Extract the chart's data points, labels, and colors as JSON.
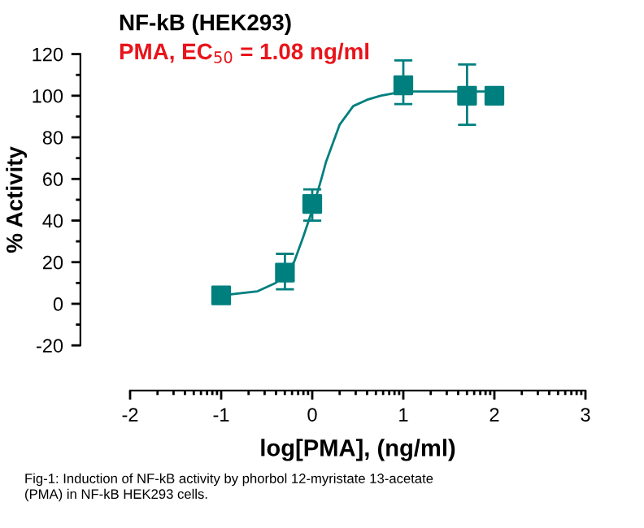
{
  "chart_data": {
    "type": "scatter",
    "title": "NF-kB (HEK293)",
    "subtitle": "PMA, EC$_{50}$ = 1.08 ng/ml",
    "xlabel": "log[PMA], (ng/ml)",
    "ylabel": "% Activity",
    "annotations": [
      "Fig-1: Induction of NF-kB activity by phorbol 12-myristate 13-acetate\n(PMA) in NF-kB HEK293 cells."
    ],
    "xlim": [
      -2,
      3
    ],
    "xticks": [
      -2,
      -1,
      0,
      1,
      2,
      3
    ],
    "ylim": [
      -20,
      120
    ],
    "yticks": [
      -20,
      0,
      20,
      40,
      60,
      80,
      100,
      120
    ],
    "grid": false,
    "legend": false,
    "marker": "square",
    "series": [
      {
        "type": "line",
        "color": "#007f7f",
        "marker": "none",
        "x": [
          -1,
          -0.6,
          -0.4,
          -0.2,
          -0.1,
          0,
          0.1,
          0.15,
          0.3,
          0.45,
          0.6,
          0.75,
          1.0,
          2.0
        ],
        "values": [
          4,
          6,
          10,
          20,
          32,
          45,
          60,
          68,
          86,
          95,
          98,
          100,
          102,
          102
        ]
      },
      {
        "color": "#007f7f",
        "x": [
          -1,
          -0.3,
          0,
          1,
          1.7,
          2
        ],
        "values": [
          4,
          15,
          48,
          105,
          100,
          100
        ],
        "errors": [
          null,
          [
            7,
            24
          ],
          [
            40,
            55
          ],
          [
            96,
            117
          ],
          [
            86,
            115
          ],
          null
        ]
      }
    ]
  }
}
